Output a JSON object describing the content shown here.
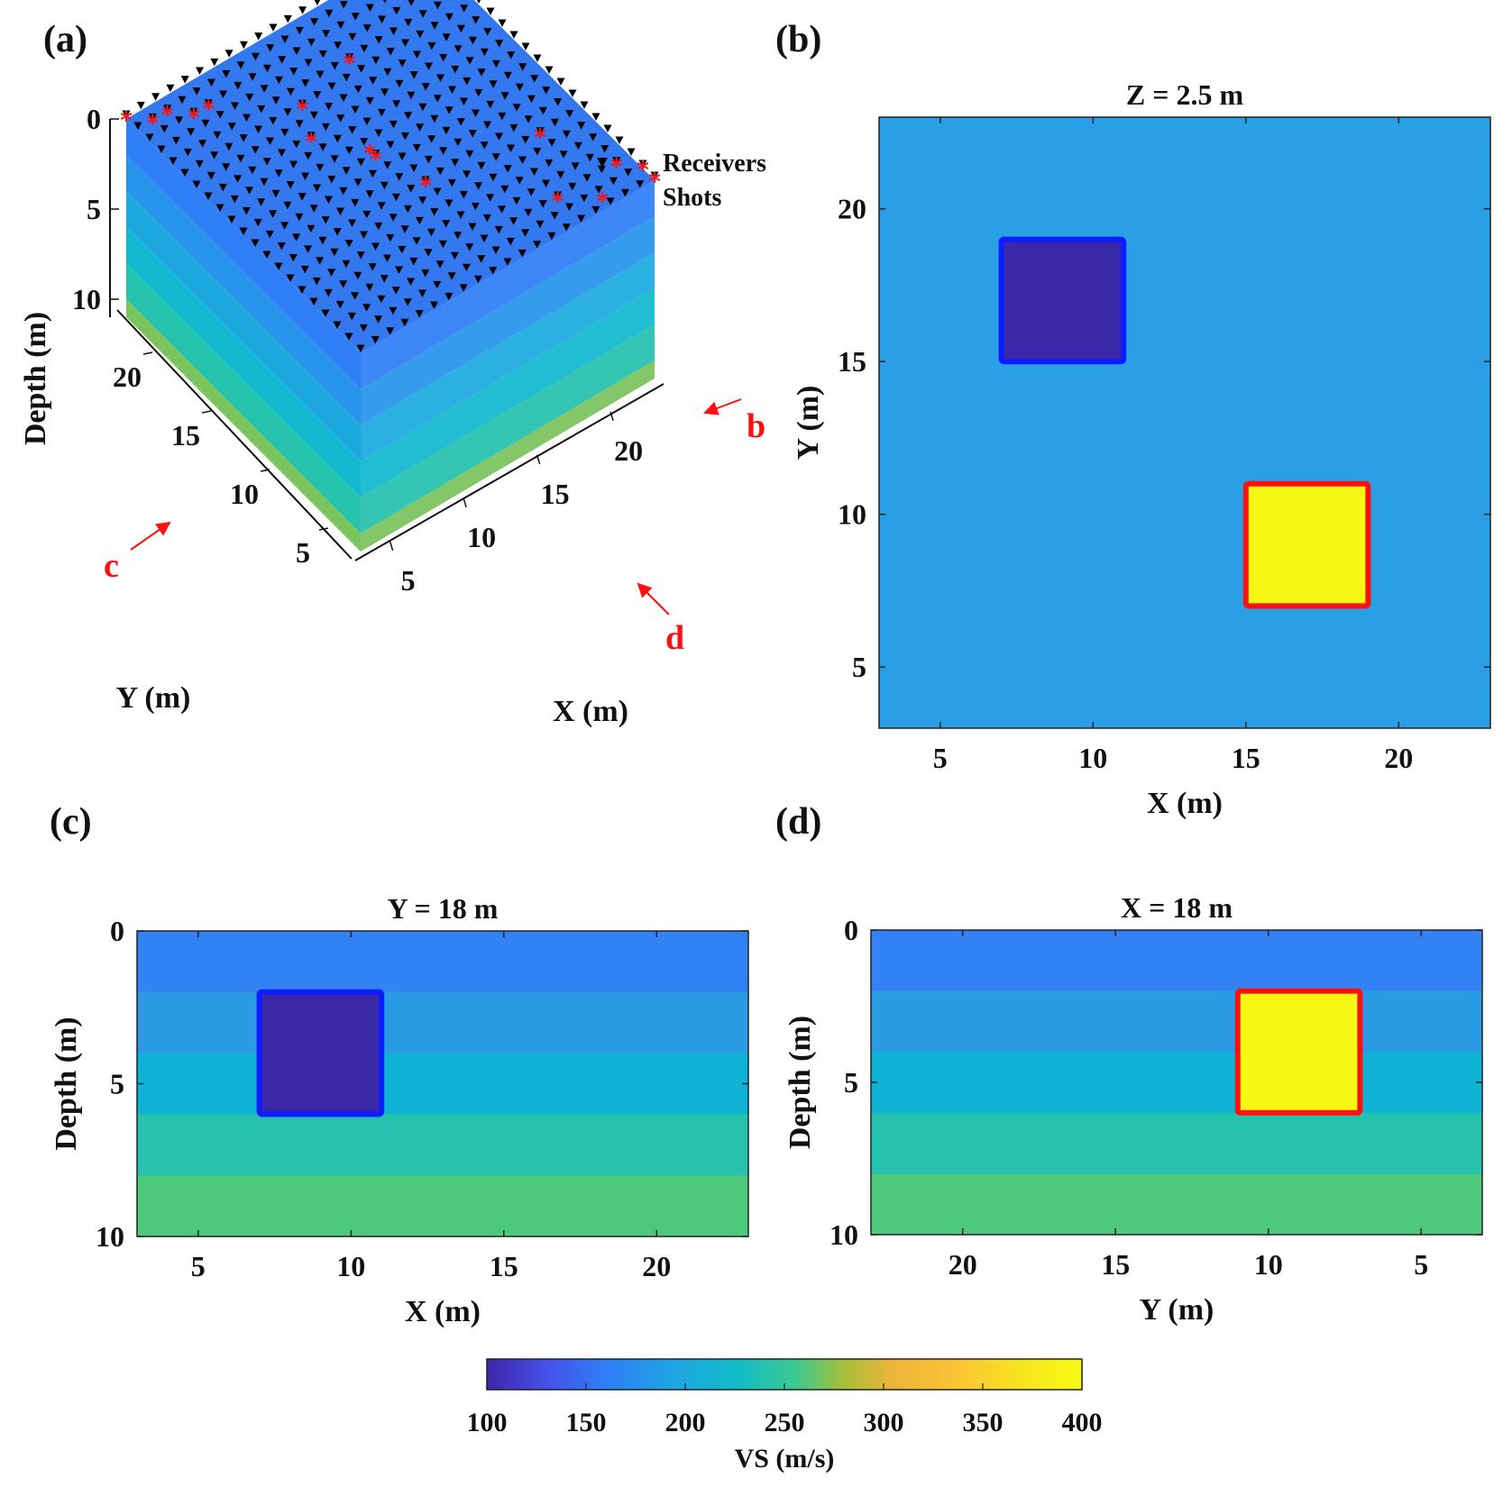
{
  "panel_labels": [
    "(a)",
    "(b)",
    "(c)",
    "(d)"
  ],
  "colorbar": {
    "label": "VS (m/s)",
    "ticks": [
      "100",
      "150",
      "200",
      "250",
      "300",
      "350",
      "400"
    ]
  },
  "chart_data": [
    {
      "type": "heatmap",
      "panel": "a",
      "title": "",
      "xlabel": "X (m)",
      "ylabel": "Y (m)",
      "zlabel": "Depth (m)",
      "x_ticks": [
        "5",
        "10",
        "15",
        "20"
      ],
      "y_ticks": [
        "5",
        "10",
        "15",
        "20"
      ],
      "z_ticks": [
        "0",
        "5",
        "10"
      ],
      "xlim": [
        3,
        23
      ],
      "ylim": [
        3,
        23
      ],
      "zlim": [
        0,
        10
      ],
      "layers": [
        {
          "top": 0,
          "bottom": 2,
          "vs": 160
        },
        {
          "top": 2,
          "bottom": 4,
          "vs": 180
        },
        {
          "top": 4,
          "bottom": 6,
          "vs": 200
        },
        {
          "top": 6,
          "bottom": 8,
          "vs": 220
        },
        {
          "top": 8,
          "bottom": 10,
          "vs": 240
        },
        {
          "top": 10,
          "bottom": 11,
          "vs": 270
        }
      ],
      "legend": {
        "position": "top-right",
        "receivers_label": "Receivers",
        "shots_label": "Shots"
      },
      "receivers_grid": {
        "x_from": 3,
        "x_to": 23,
        "y_from": 3,
        "y_to": 23,
        "step": 1
      },
      "shots": [
        [
          3,
          23
        ],
        [
          4,
          22
        ],
        [
          5,
          22
        ],
        [
          6,
          21
        ],
        [
          7,
          21
        ],
        [
          10,
          16
        ],
        [
          11,
          18
        ],
        [
          12,
          13
        ],
        [
          12,
          13.5
        ],
        [
          13,
          10
        ],
        [
          15,
          19
        ],
        [
          18,
          5
        ],
        [
          20,
          9
        ],
        [
          22,
          5
        ],
        [
          23,
          4
        ],
        [
          23,
          3
        ]
      ],
      "arrows": [
        {
          "label": "b",
          "color": "#ff1010"
        },
        {
          "label": "c",
          "color": "#ff1010"
        },
        {
          "label": "d",
          "color": "#ff1010"
        }
      ]
    },
    {
      "type": "heatmap",
      "panel": "b",
      "title": "Z = 2.5 m",
      "xlabel": "X (m)",
      "ylabel": "Y (m)",
      "xlim": [
        3,
        23
      ],
      "ylim": [
        3,
        23
      ],
      "x_ticks": [
        5,
        10,
        15,
        20
      ],
      "y_ticks": [
        5,
        10,
        15,
        20
      ],
      "background_color": "#2a9fe6",
      "anomalies": [
        {
          "x": [
            7,
            11
          ],
          "y": [
            15,
            19
          ],
          "fill": "#3a28a8",
          "edge": "#0b1cff"
        },
        {
          "x": [
            15,
            19
          ],
          "y": [
            7,
            11
          ],
          "fill": "#f7f716",
          "edge": "#ff1010"
        }
      ]
    },
    {
      "type": "heatmap",
      "panel": "c",
      "title": "Y = 18 m",
      "xlabel": "X (m)",
      "ylabel": "Depth (m)",
      "xlim": [
        3,
        23
      ],
      "ylim": [
        10,
        0
      ],
      "x_ticks": [
        5,
        10,
        15,
        20
      ],
      "y_ticks": [
        0,
        5,
        10
      ],
      "layers": [
        {
          "top": 0,
          "bottom": 2,
          "color": "#3282f4"
        },
        {
          "top": 2,
          "bottom": 4,
          "color": "#2a9ae4"
        },
        {
          "top": 4,
          "bottom": 6,
          "color": "#0db2d4"
        },
        {
          "top": 6,
          "bottom": 8,
          "color": "#25c3ad"
        },
        {
          "top": 8,
          "bottom": 10,
          "color": "#4cc97a"
        }
      ],
      "anomalies": [
        {
          "x": [
            7,
            11
          ],
          "z": [
            2,
            6
          ],
          "fill": "#3a28a8",
          "edge": "#0b1cff"
        }
      ]
    },
    {
      "type": "heatmap",
      "panel": "d",
      "title": "X = 18 m",
      "xlabel": "Y (m)",
      "ylabel": "Depth (m)",
      "xlim": [
        23,
        3
      ],
      "ylim": [
        10,
        0
      ],
      "x_ticks": [
        20,
        15,
        10,
        5
      ],
      "y_ticks": [
        0,
        5,
        10
      ],
      "layers": [
        {
          "top": 0,
          "bottom": 2,
          "color": "#3282f4"
        },
        {
          "top": 2,
          "bottom": 4,
          "color": "#2a9ae4"
        },
        {
          "top": 4,
          "bottom": 6,
          "color": "#0db2d4"
        },
        {
          "top": 6,
          "bottom": 8,
          "color": "#25c3ad"
        },
        {
          "top": 8,
          "bottom": 10,
          "color": "#4cc97a"
        }
      ],
      "anomalies": [
        {
          "x": [
            7,
            11
          ],
          "z": [
            2,
            6
          ],
          "fill": "#f7f716",
          "edge": "#ff1010"
        }
      ]
    }
  ]
}
